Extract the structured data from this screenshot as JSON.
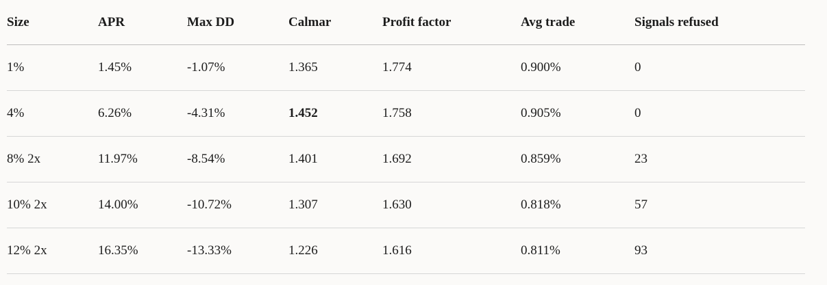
{
  "table": {
    "header": [
      "Size",
      "APR",
      "Max DD",
      "Calmar",
      "Profit factor",
      "Avg trade",
      "Signals refused"
    ],
    "rows": [
      [
        "1%",
        "1.45%",
        "-1.07%",
        "1.365",
        "1.774",
        "0.900%",
        "0"
      ],
      [
        "4%",
        "6.26%",
        "-4.31%",
        "1.452",
        "1.758",
        "0.905%",
        "0"
      ],
      [
        "8% 2x",
        "11.97%",
        "-8.54%",
        "1.401",
        "1.692",
        "0.859%",
        "23"
      ],
      [
        "10% 2x",
        "14.00%",
        "-10.72%",
        "1.307",
        "1.630",
        "0.818%",
        "57"
      ],
      [
        "12% 2x",
        "16.35%",
        "-13.33%",
        "1.226",
        "1.616",
        "0.811%",
        "93"
      ]
    ]
  }
}
